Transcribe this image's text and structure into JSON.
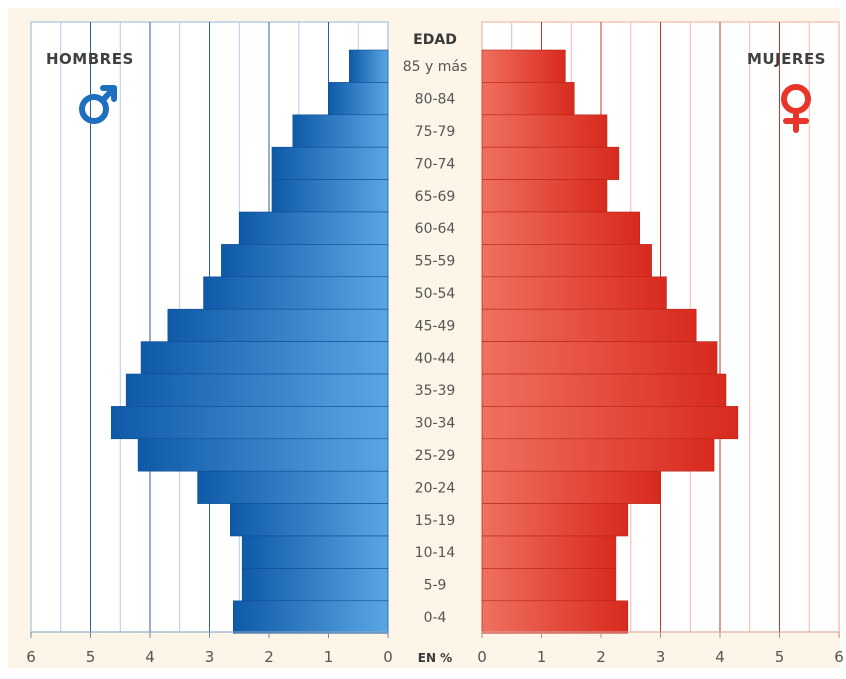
{
  "chart_data": {
    "type": "bar",
    "orientation": "horizontal",
    "layout": "population-pyramid",
    "center_header": "EDAD",
    "axis_unit_label": "EN %",
    "categories": [
      "85 y más",
      "80-84",
      "75-79",
      "70-74",
      "65-69",
      "60-64",
      "55-59",
      "50-54",
      "45-49",
      "40-44",
      "35-39",
      "30-34",
      "25-29",
      "20-24",
      "15-19",
      "10-14",
      "5-9",
      "0-4"
    ],
    "series": [
      {
        "name": "HOMBRES",
        "side": "left",
        "color": "#1f6fc0",
        "values": [
          0.65,
          1.0,
          1.6,
          1.95,
          1.95,
          2.5,
          2.8,
          3.1,
          3.7,
          4.15,
          4.4,
          4.65,
          4.2,
          3.2,
          2.65,
          2.45,
          2.45,
          2.6
        ]
      },
      {
        "name": "MUJERES",
        "side": "right",
        "color": "#e8352a",
        "values": [
          1.4,
          1.55,
          2.1,
          2.3,
          2.1,
          2.65,
          2.85,
          3.1,
          3.6,
          3.95,
          4.1,
          4.3,
          3.9,
          3.0,
          2.45,
          2.25,
          2.25,
          2.45
        ]
      }
    ],
    "left_axis_ticks": [
      "6",
      "5",
      "4",
      "3",
      "2",
      "1",
      "0"
    ],
    "right_axis_ticks": [
      "0",
      "1",
      "2",
      "3",
      "4",
      "5",
      "6"
    ],
    "xlim": [
      0,
      6
    ],
    "grid": true,
    "symbols": {
      "left": "male-symbol",
      "right": "female-symbol"
    }
  }
}
